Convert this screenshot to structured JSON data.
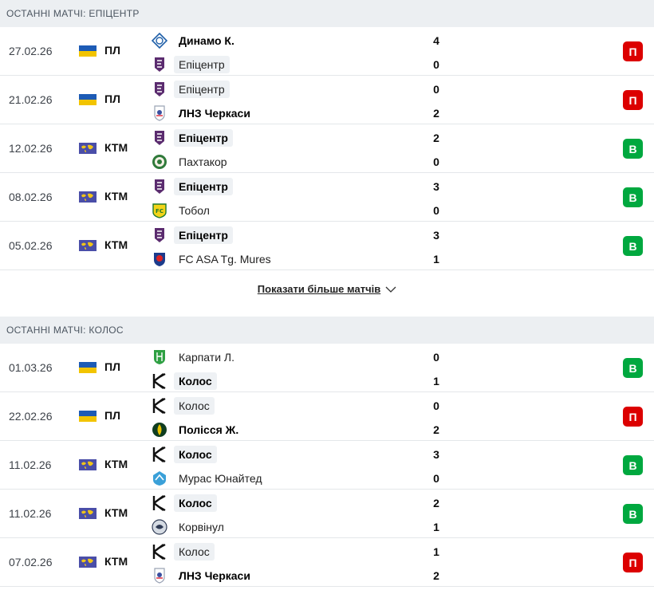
{
  "sections": [
    {
      "header": "ОСТАННІ МАТЧІ: ЕПІЦЕНТР",
      "matches": [
        {
          "date": "27.02.26",
          "flag": "ua",
          "comp": "ПЛ",
          "home": {
            "name": "Динамо К.",
            "logo": "dynamo-icon",
            "bold": true,
            "hl": false,
            "score": "4"
          },
          "away": {
            "name": "Епіцентр",
            "logo": "epicentr-icon",
            "bold": false,
            "hl": true,
            "score": "0"
          },
          "result": "П",
          "result_type": "loss"
        },
        {
          "date": "21.02.26",
          "flag": "ua",
          "comp": "ПЛ",
          "home": {
            "name": "Епіцентр",
            "logo": "epicentr-icon",
            "bold": false,
            "hl": true,
            "score": "0"
          },
          "away": {
            "name": "ЛНЗ Черкаси",
            "logo": "lnz-icon",
            "bold": true,
            "hl": false,
            "score": "2"
          },
          "result": "П",
          "result_type": "loss"
        },
        {
          "date": "12.02.26",
          "flag": "world",
          "comp": "КТМ",
          "home": {
            "name": "Епіцентр",
            "logo": "epicentr-icon",
            "bold": true,
            "hl": true,
            "score": "2"
          },
          "away": {
            "name": "Пахтакор",
            "logo": "pakhtakor-icon",
            "bold": false,
            "hl": false,
            "score": "0"
          },
          "result": "В",
          "result_type": "win"
        },
        {
          "date": "08.02.26",
          "flag": "world",
          "comp": "КТМ",
          "home": {
            "name": "Епіцентр",
            "logo": "epicentr-icon",
            "bold": true,
            "hl": true,
            "score": "3"
          },
          "away": {
            "name": "Тобол",
            "logo": "tobol-icon",
            "bold": false,
            "hl": false,
            "score": "0"
          },
          "result": "В",
          "result_type": "win"
        },
        {
          "date": "05.02.26",
          "flag": "world",
          "comp": "КТМ",
          "home": {
            "name": "Епіцентр",
            "logo": "epicentr-icon",
            "bold": true,
            "hl": true,
            "score": "3"
          },
          "away": {
            "name": "FC ASA Tg. Mures",
            "logo": "asa-icon",
            "bold": false,
            "hl": false,
            "score": "1"
          },
          "result": "В",
          "result_type": "win"
        }
      ],
      "show_more": "Показати більше матчів"
    },
    {
      "header": "ОСТАННІ МАТЧІ: КОЛОС",
      "matches": [
        {
          "date": "01.03.26",
          "flag": "ua",
          "comp": "ПЛ",
          "home": {
            "name": "Карпати Л.",
            "logo": "karpaty-icon",
            "bold": false,
            "hl": false,
            "score": "0"
          },
          "away": {
            "name": "Колос",
            "logo": "kolos-icon",
            "bold": true,
            "hl": true,
            "score": "1"
          },
          "result": "В",
          "result_type": "win"
        },
        {
          "date": "22.02.26",
          "flag": "ua",
          "comp": "ПЛ",
          "home": {
            "name": "Колос",
            "logo": "kolos-icon",
            "bold": false,
            "hl": true,
            "score": "0"
          },
          "away": {
            "name": "Полісся Ж.",
            "logo": "polissya-icon",
            "bold": true,
            "hl": false,
            "score": "2"
          },
          "result": "П",
          "result_type": "loss"
        },
        {
          "date": "11.02.26",
          "flag": "world",
          "comp": "КТМ",
          "home": {
            "name": "Колос",
            "logo": "kolos-icon",
            "bold": true,
            "hl": true,
            "score": "3"
          },
          "away": {
            "name": "Мурас Юнайтед",
            "logo": "muras-icon",
            "bold": false,
            "hl": false,
            "score": "0"
          },
          "result": "В",
          "result_type": "win"
        },
        {
          "date": "11.02.26",
          "flag": "world",
          "comp": "КТМ",
          "home": {
            "name": "Колос",
            "logo": "kolos-icon",
            "bold": true,
            "hl": true,
            "score": "2"
          },
          "away": {
            "name": "Корвінул",
            "logo": "corvinul-icon",
            "bold": false,
            "hl": false,
            "score": "1"
          },
          "result": "В",
          "result_type": "win"
        },
        {
          "date": "07.02.26",
          "flag": "world",
          "comp": "КТМ",
          "home": {
            "name": "Колос",
            "logo": "kolos-icon",
            "bold": false,
            "hl": true,
            "score": "1"
          },
          "away": {
            "name": "ЛНЗ Черкаси",
            "logo": "lnz-icon",
            "bold": true,
            "hl": false,
            "score": "2"
          },
          "result": "П",
          "result_type": "loss"
        }
      ]
    }
  ],
  "colors": {
    "win": "#00a83f",
    "loss": "#dc0000",
    "header_bg": "#eceff2"
  }
}
